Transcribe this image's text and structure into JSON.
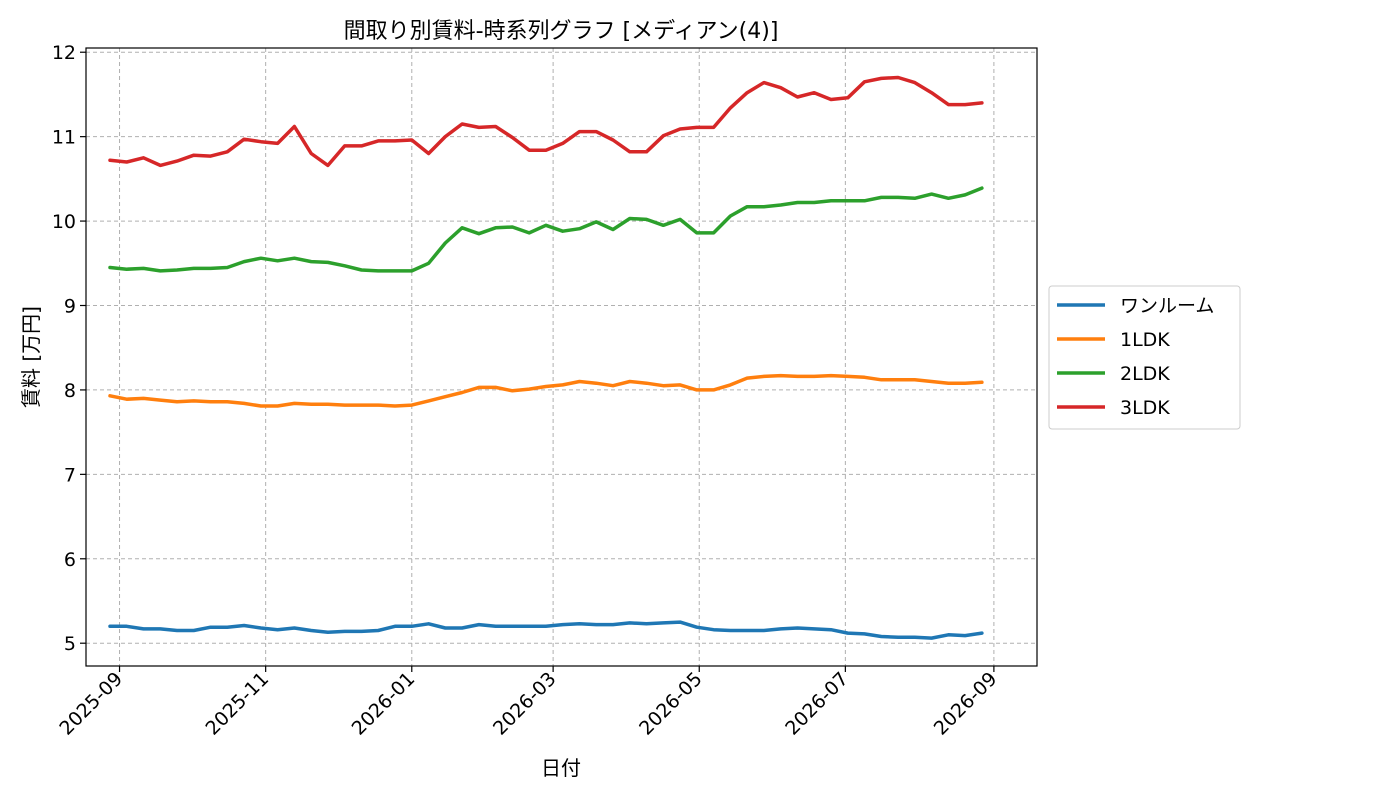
{
  "chart_data": {
    "type": "line",
    "title": "間取り別賃料-時系列グラフ [メディアン(4)]",
    "xlabel": "日付",
    "ylabel": "賃料 [万円]",
    "ylim": [
      4.73,
      12.05
    ],
    "xlim": [
      "2025-08-18",
      "2026-09-19"
    ],
    "yticks": [
      5,
      6,
      7,
      8,
      9,
      10,
      11,
      12
    ],
    "xticks": [
      "2025-09",
      "2025-11",
      "2026-01",
      "2026-03",
      "2026-05",
      "2026-07",
      "2026-09"
    ],
    "grid": true,
    "legend_position": "right-center",
    "dates": [
      "2025-08-28",
      "2025-09-04",
      "2025-09-11",
      "2025-09-18",
      "2025-09-25",
      "2025-10-02",
      "2025-10-09",
      "2025-10-16",
      "2025-10-23",
      "2025-10-30",
      "2025-11-06",
      "2025-11-13",
      "2025-11-20",
      "2025-11-27",
      "2025-12-04",
      "2025-12-11",
      "2025-12-18",
      "2025-12-25",
      "2026-01-01",
      "2026-01-08",
      "2026-01-15",
      "2026-01-22",
      "2026-01-29",
      "2026-02-05",
      "2026-02-12",
      "2026-02-19",
      "2026-02-26",
      "2026-03-05",
      "2026-03-12",
      "2026-03-19",
      "2026-03-26",
      "2026-04-02",
      "2026-04-09",
      "2026-04-16",
      "2026-04-23",
      "2026-04-30",
      "2026-05-07",
      "2026-05-14",
      "2026-05-21",
      "2026-05-28",
      "2026-06-04",
      "2026-06-11",
      "2026-06-18",
      "2026-06-25",
      "2026-07-02",
      "2026-07-09",
      "2026-07-16",
      "2026-07-23",
      "2026-07-30",
      "2026-08-06",
      "2026-08-13",
      "2026-08-20",
      "2026-08-27"
    ],
    "series": [
      {
        "name": "ワンルーム",
        "color": "#1f77b4",
        "values": [
          5.2,
          5.2,
          5.17,
          5.17,
          5.15,
          5.15,
          5.19,
          5.19,
          5.21,
          5.18,
          5.16,
          5.18,
          5.15,
          5.13,
          5.14,
          5.14,
          5.15,
          5.2,
          5.2,
          5.23,
          5.18,
          5.18,
          5.22,
          5.2,
          5.2,
          5.2,
          5.2,
          5.22,
          5.23,
          5.22,
          5.22,
          5.24,
          5.23,
          5.24,
          5.25,
          5.19,
          5.16,
          5.15,
          5.15,
          5.15,
          5.17,
          5.18,
          5.17,
          5.16,
          5.12,
          5.11,
          5.08,
          5.07,
          5.07,
          5.06,
          5.1,
          5.09,
          5.12
        ]
      },
      {
        "name": "1LDK",
        "color": "#ff7f0e",
        "values": [
          7.93,
          7.89,
          7.9,
          7.88,
          7.86,
          7.87,
          7.86,
          7.86,
          7.84,
          7.81,
          7.81,
          7.84,
          7.83,
          7.83,
          7.82,
          7.82,
          7.82,
          7.81,
          7.82,
          7.87,
          7.92,
          7.97,
          8.03,
          8.03,
          7.99,
          8.01,
          8.04,
          8.06,
          8.1,
          8.08,
          8.05,
          8.1,
          8.08,
          8.05,
          8.06,
          8.0,
          8.0,
          8.06,
          8.14,
          8.16,
          8.17,
          8.16,
          8.16,
          8.17,
          8.16,
          8.15,
          8.12,
          8.12,
          8.12,
          8.1,
          8.08,
          8.08,
          8.09
        ]
      },
      {
        "name": "2LDK",
        "color": "#2ca02c",
        "values": [
          9.45,
          9.43,
          9.44,
          9.41,
          9.42,
          9.44,
          9.44,
          9.45,
          9.52,
          9.56,
          9.53,
          9.56,
          9.52,
          9.51,
          9.47,
          9.42,
          9.41,
          9.41,
          9.41,
          9.5,
          9.74,
          9.92,
          9.85,
          9.92,
          9.93,
          9.86,
          9.95,
          9.88,
          9.91,
          9.99,
          9.9,
          10.03,
          10.02,
          9.95,
          10.02,
          9.86,
          9.86,
          10.06,
          10.17,
          10.17,
          10.19,
          10.22,
          10.22,
          10.24,
          10.24,
          10.24,
          10.28,
          10.28,
          10.27,
          10.32,
          10.27,
          10.31,
          10.39
        ]
      },
      {
        "name": "3LDK",
        "color": "#d62728",
        "values": [
          10.72,
          10.7,
          10.75,
          10.66,
          10.71,
          10.78,
          10.77,
          10.82,
          10.97,
          10.94,
          10.92,
          11.12,
          10.8,
          10.66,
          10.89,
          10.89,
          10.95,
          10.95,
          10.96,
          10.8,
          11.0,
          11.15,
          11.11,
          11.12,
          10.99,
          10.84,
          10.84,
          10.92,
          11.06,
          11.06,
          10.96,
          10.82,
          10.82,
          11.01,
          11.09,
          11.11,
          11.11,
          11.34,
          11.52,
          11.64,
          11.58,
          11.47,
          11.52,
          11.44,
          11.46,
          11.65,
          11.69,
          11.7,
          11.64,
          11.52,
          11.38,
          11.38,
          11.4
        ]
      }
    ]
  }
}
